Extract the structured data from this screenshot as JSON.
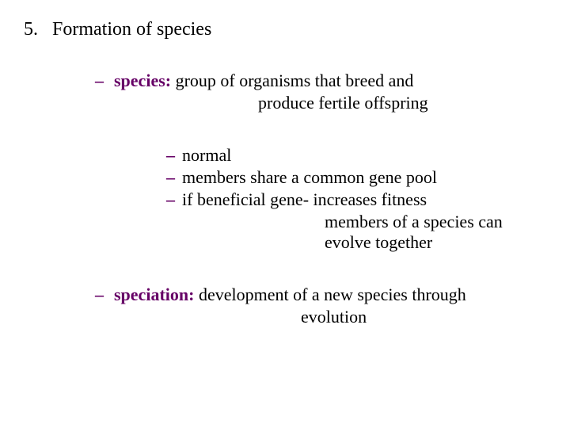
{
  "colors": {
    "background": "#ffffff",
    "text": "#000000",
    "accent": "#660066"
  },
  "typography": {
    "font_family": "Georgia, 'Times New Roman', serif",
    "heading_fontsize_pt": 18,
    "body_fontsize_pt": 17
  },
  "heading": {
    "number": "5.",
    "title": "Formation of species"
  },
  "items": [
    {
      "term": "species",
      "colon": ":",
      "def_line1": "group of organisms that breed and",
      "def_line2": "produce fertile offspring"
    },
    {
      "term": "speciation",
      "colon": ":",
      "def_line1": "development of a new species through",
      "def_line2": "evolution"
    }
  ],
  "subitems": [
    {
      "text": "normal"
    },
    {
      "text": "members share a common gene pool"
    },
    {
      "text_line1": "if beneficial gene- increases fitness",
      "text_line2": "members of a species can evolve together"
    }
  ],
  "dash": "–"
}
